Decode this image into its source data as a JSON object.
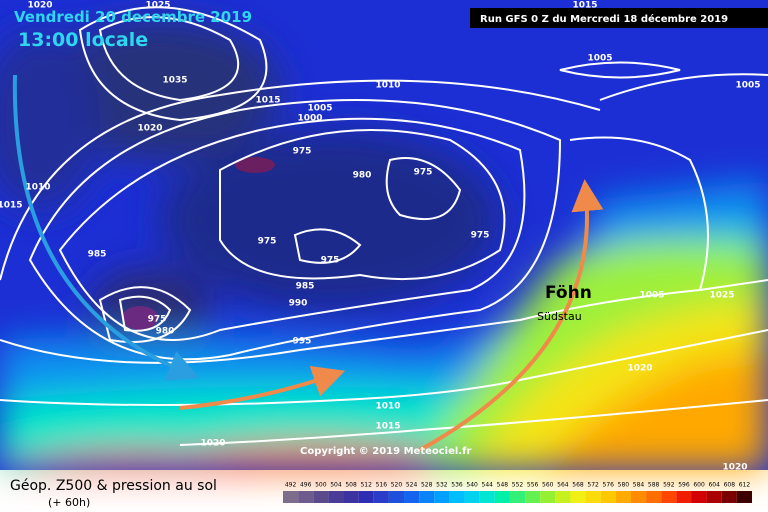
{
  "header": {
    "date": "Vendredi 20 decembre 2019",
    "time": "13:00 locale",
    "run": "Run GFS 0 Z du Mercredi 18 décembre 2019"
  },
  "annotations": {
    "foehn": "Föhn",
    "suedstau": "Südstau",
    "copyright": "Copyright © 2019 Meteociel.fr"
  },
  "isobar_labels": [
    "1020",
    "1025",
    "1035",
    "1015",
    "1020",
    "1010",
    "1015",
    "1005",
    "1000",
    "975",
    "980",
    "975",
    "975",
    "975",
    "975",
    "985",
    "985",
    "990",
    "975",
    "980",
    "995",
    "1010",
    "1005",
    "1015",
    "1005",
    "1005",
    "1025",
    "1020",
    "1010",
    "1015",
    "1020",
    "1020"
  ],
  "footer": {
    "title": "Géop. Z500 & pression au sol",
    "lead": "(+ 60h)"
  },
  "scale": {
    "labels": [
      492,
      496,
      500,
      504,
      508,
      512,
      516,
      520,
      524,
      528,
      532,
      536,
      540,
      544,
      548,
      552,
      556,
      560,
      564,
      568,
      572,
      576,
      580,
      584,
      588,
      592,
      596,
      600,
      604,
      608,
      612
    ],
    "colors": [
      "#7d6d8d",
      "#6e5a8c",
      "#5a4a8c",
      "#4a3c96",
      "#3c32a0",
      "#2e2eb4",
      "#2a3cc8",
      "#1e50dc",
      "#1464f0",
      "#0a82fa",
      "#00a0ff",
      "#00beff",
      "#00d2f0",
      "#00e6d2",
      "#00f0aa",
      "#32f078",
      "#64f050",
      "#96f032",
      "#c8f01e",
      "#f0f014",
      "#fadc0a",
      "#ffc800",
      "#ffaa00",
      "#ff8c00",
      "#ff6e00",
      "#ff4600",
      "#f01e00",
      "#d20000",
      "#aa0000",
      "#7a0000",
      "#3c0000"
    ]
  }
}
